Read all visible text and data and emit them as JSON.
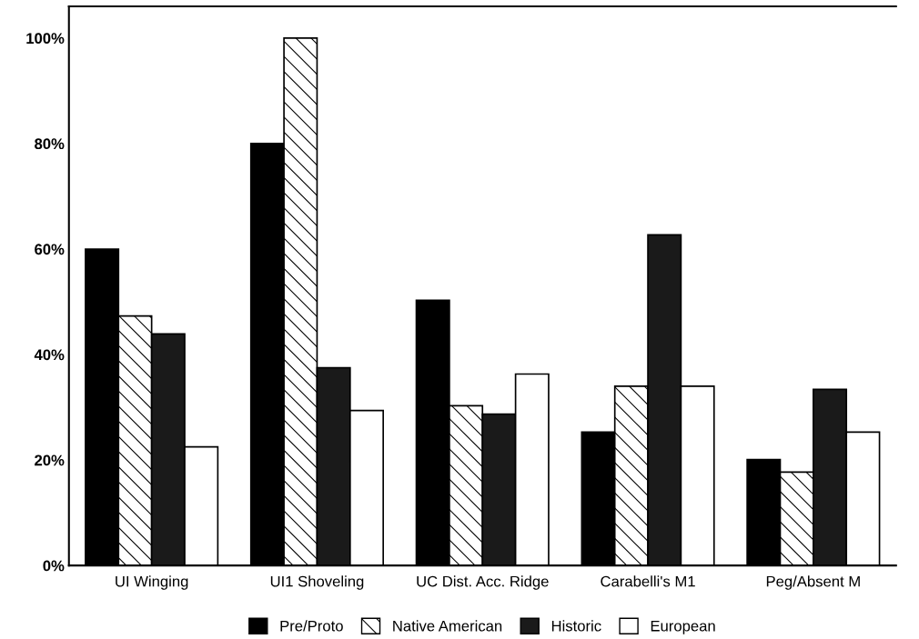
{
  "chart_data": {
    "type": "bar",
    "categories": [
      "UI Winging",
      "UI1 Shoveling",
      "UC Dist. Acc. Ridge",
      "Carabelli's M1",
      "Peg/Absent M"
    ],
    "series": [
      {
        "name": "Pre/Proto",
        "color": "#000000",
        "values": [
          60,
          80,
          50.3,
          25.3,
          20.1
        ]
      },
      {
        "name": "Native American",
        "color": "#ffffff",
        "values": [
          47.3,
          100,
          30.3,
          34,
          17.7
        ]
      },
      {
        "name": "Historic",
        "color": "#1a1a1a",
        "values": [
          43.9,
          37.5,
          28.7,
          62.7,
          33.4
        ]
      },
      {
        "name": "European",
        "color": "#ffffff",
        "values": [
          22.5,
          29.4,
          36.3,
          34,
          25.3
        ]
      }
    ],
    "ylim": [
      0,
      106
    ],
    "yticks": [
      {
        "value": 0,
        "label": "0%"
      },
      {
        "value": 20,
        "label": "20%"
      },
      {
        "value": 40,
        "label": "40%"
      },
      {
        "value": 60,
        "label": "60%"
      },
      {
        "value": 80,
        "label": "80%"
      },
      {
        "value": 100,
        "label": "100%"
      }
    ],
    "grid": false,
    "legend": "bottom"
  }
}
